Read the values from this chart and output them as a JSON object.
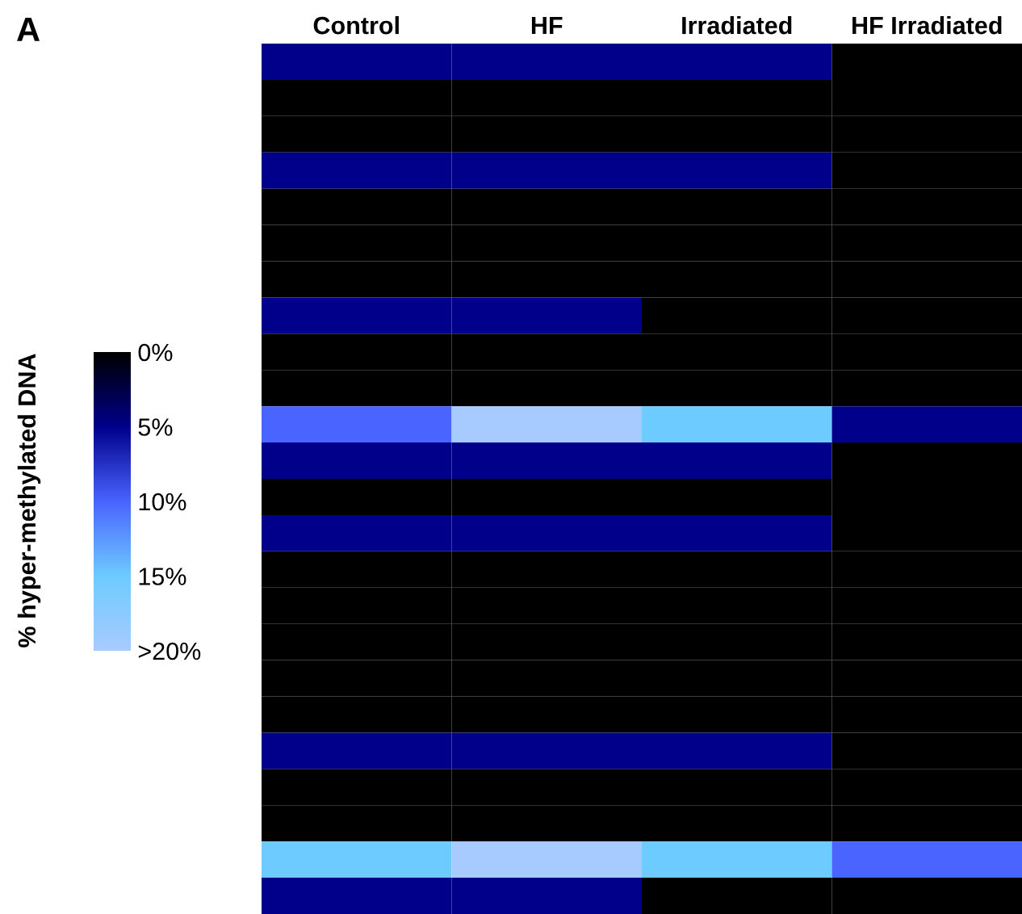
{
  "chart_data": {
    "type": "heatmap",
    "categories": [
      "Control",
      "HF",
      "Irradiated",
      "HF Irradiated"
    ],
    "y_categories": [
      null,
      null,
      null,
      null,
      null,
      null,
      null,
      null,
      null,
      null,
      null,
      null,
      null,
      null,
      null,
      null,
      null,
      null,
      null,
      null,
      null,
      null,
      null,
      null
    ],
    "cells": [
      [
        5,
        5,
        5,
        0
      ],
      [
        0,
        0,
        0,
        0
      ],
      [
        0,
        0,
        0,
        0
      ],
      [
        5,
        5,
        5,
        0
      ],
      [
        0,
        0,
        0,
        0
      ],
      [
        0,
        0,
        0,
        0
      ],
      [
        0,
        0,
        0,
        0
      ],
      [
        5,
        5,
        0,
        0
      ],
      [
        0,
        0,
        0,
        0
      ],
      [
        0,
        0,
        0,
        0
      ],
      [
        10,
        20,
        15,
        5
      ],
      [
        5,
        5,
        5,
        0
      ],
      [
        0,
        0,
        0,
        0
      ],
      [
        5,
        5,
        5,
        0
      ],
      [
        0,
        0,
        0,
        0
      ],
      [
        0,
        0,
        0,
        0
      ],
      [
        0,
        0,
        0,
        0
      ],
      [
        0,
        0,
        0,
        0
      ],
      [
        0,
        0,
        0,
        0
      ],
      [
        5,
        5,
        5,
        0
      ],
      [
        0,
        0,
        0,
        0
      ],
      [
        0,
        0,
        0,
        0
      ],
      [
        15,
        20,
        15,
        10
      ],
      [
        5,
        5,
        0,
        0
      ]
    ],
    "clim": [
      0,
      20
    ],
    "cticks": [
      {
        "value": 0,
        "label": "0%"
      },
      {
        "value": 5,
        "label": "5%"
      },
      {
        "value": 10,
        "label": "10%"
      },
      {
        "value": 15,
        "label": "15%"
      },
      {
        "value": 20,
        "label": ">20%"
      }
    ],
    "colors": [
      "#000000",
      "#00008b",
      "#4a64ff",
      "#6ecbff",
      "#a8cbff"
    ],
    "clabel": "% hyper-methylated DNA",
    "annotations": [
      "A"
    ]
  }
}
